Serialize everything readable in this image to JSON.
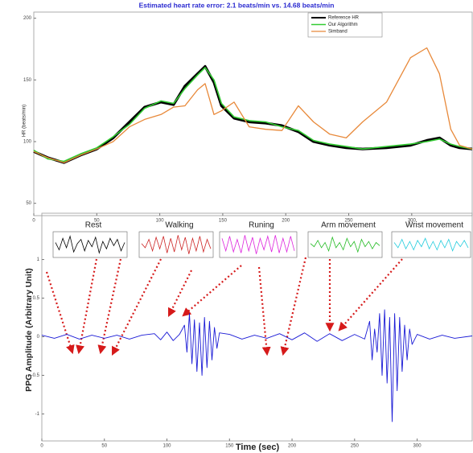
{
  "chart_data": [
    {
      "type": "line",
      "title": "Estimated heart rate error: 2.1 beats/min vs. 14.68 beats/min",
      "y_label": "HR (beats/min)",
      "x": [
        0,
        11,
        24,
        37,
        50,
        63,
        76,
        88,
        101,
        111,
        120,
        130,
        136,
        143,
        149,
        159,
        171,
        184,
        197,
        210,
        222,
        235,
        248,
        261,
        280,
        299,
        312,
        322,
        331,
        338,
        348
      ],
      "series": [
        {
          "name": "Reference HR",
          "color": "#000000",
          "width": 3.2,
          "values": [
            92,
            87,
            83,
            89,
            94,
            103,
            116,
            128,
            132,
            130,
            145,
            155,
            161,
            148,
            129,
            119,
            116,
            115,
            113,
            108,
            100,
            97,
            95,
            94,
            95,
            97,
            101,
            103,
            97,
            95,
            94
          ]
        },
        {
          "name": "Our Algorithm",
          "color": "#33cc33",
          "width": 1.6,
          "values": [
            93,
            86,
            84,
            90,
            95,
            104,
            114,
            127,
            133,
            131,
            143,
            154,
            160,
            150,
            131,
            120,
            117,
            116,
            112,
            109,
            101,
            98,
            96,
            94,
            96,
            98,
            100,
            102,
            98,
            96,
            94
          ]
        },
        {
          "name": "Simband",
          "color": "#e8893a",
          "width": 1.3,
          "values": [
            92,
            87,
            83,
            89,
            94,
            100,
            112,
            118,
            122,
            128,
            129,
            142,
            147,
            122,
            125,
            132,
            112,
            110,
            109,
            129,
            116,
            106,
            103,
            116,
            132,
            168,
            176,
            155,
            110,
            97,
            94
          ]
        }
      ],
      "xlim": [
        0,
        348
      ],
      "ylim": [
        40,
        205
      ],
      "xticks": [
        0,
        50,
        100,
        150,
        200,
        250,
        300
      ],
      "yticks": [
        50,
        100,
        150,
        200
      ]
    },
    {
      "type": "line",
      "x_label": "Time (sec)",
      "y_label": "PPG Amplitude (Arbitrary Unit)",
      "x": [
        0,
        10,
        20,
        30,
        40,
        50,
        60,
        70,
        80,
        90,
        95,
        100,
        105,
        110,
        114,
        116,
        118,
        120,
        122,
        124,
        126,
        128,
        130,
        132,
        134,
        136,
        138,
        140,
        142,
        150,
        160,
        170,
        180,
        190,
        200,
        210,
        220,
        230,
        240,
        250,
        258,
        262,
        264,
        266,
        268,
        270,
        272,
        274,
        276,
        278,
        280,
        282,
        284,
        286,
        288,
        290,
        292,
        294,
        296,
        300,
        310,
        320,
        330,
        344
      ],
      "series": [
        {
          "name": "PPG",
          "color": "#1a1ad6",
          "width": 0.9,
          "values": [
            0.02,
            -0.02,
            0.03,
            -0.03,
            0.02,
            -0.02,
            0.02,
            -0.03,
            0.02,
            0.04,
            -0.04,
            0.06,
            -0.05,
            0.03,
            0.15,
            -0.2,
            0.3,
            -0.35,
            0.22,
            -0.45,
            0.18,
            -0.5,
            0.25,
            -0.4,
            0.2,
            -0.3,
            0.12,
            -0.15,
            0.05,
            0.03,
            -0.03,
            0.02,
            -0.02,
            0.04,
            -0.04,
            0.05,
            -0.06,
            0.04,
            -0.05,
            0.03,
            -0.03,
            0.2,
            -0.3,
            0.1,
            -0.2,
            0.3,
            -0.5,
            0.35,
            -0.6,
            0.25,
            -1.1,
            0.3,
            -0.7,
            0.25,
            -0.45,
            0.15,
            -0.3,
            0.1,
            -0.1,
            0.03,
            -0.03,
            0.02,
            -0.02,
            0.01
          ]
        }
      ],
      "xlim": [
        0,
        344
      ],
      "ylim": [
        -1.35,
        1.6
      ],
      "xticks": [
        0,
        50,
        100,
        150,
        200,
        250,
        300
      ],
      "yticks": [
        -1,
        -0.5,
        0,
        0.5,
        1
      ],
      "insets": [
        {
          "label": "Rest",
          "color": "#000000",
          "values": [
            0.2,
            -0.5,
            0.6,
            -0.3,
            0.8,
            -0.7,
            0.1,
            0.5,
            -0.6,
            0.4,
            -0.2,
            0.7,
            -0.8,
            0.3,
            -0.4,
            0.6,
            -0.1,
            0.5,
            -0.6,
            0.2
          ]
        },
        {
          "label": "Walking",
          "color": "#cc2222",
          "values": [
            0.1,
            -0.3,
            0.5,
            -0.6,
            0.7,
            -0.4,
            0.8,
            -0.8,
            0.6,
            -0.7,
            0.9,
            -0.5,
            0.7,
            -0.9,
            0.6,
            -0.6,
            0.8,
            -0.7,
            0.5,
            -0.4
          ]
        },
        {
          "label": "Runing",
          "color": "#dd22dd",
          "values": [
            0.6,
            -0.6,
            0.8,
            -0.7,
            0.5,
            -0.8,
            0.9,
            -0.6,
            0.7,
            -0.9,
            0.6,
            -0.5,
            0.8,
            -0.7,
            0.9,
            -0.8,
            0.6,
            -0.7,
            0.8,
            -0.6
          ]
        },
        {
          "label": "Arm movement",
          "color": "#22bb22",
          "values": [
            0.1,
            -0.2,
            0.4,
            -0.3,
            0.2,
            -0.6,
            0.7,
            -0.3,
            0.2,
            -0.5,
            0.6,
            -0.2,
            0.3,
            -0.7,
            0.5,
            -0.2,
            0.3,
            -0.4,
            0.2,
            -0.1
          ]
        },
        {
          "label": "Wrist movement",
          "color": "#22ccdd",
          "values": [
            0.2,
            -0.3,
            0.5,
            -0.4,
            0.3,
            -0.5,
            0.4,
            -0.2,
            0.6,
            -0.4,
            0.3,
            -0.5,
            0.4,
            -0.3,
            0.5,
            -0.6,
            0.3,
            -0.2,
            0.4,
            -0.3
          ]
        }
      ]
    }
  ]
}
